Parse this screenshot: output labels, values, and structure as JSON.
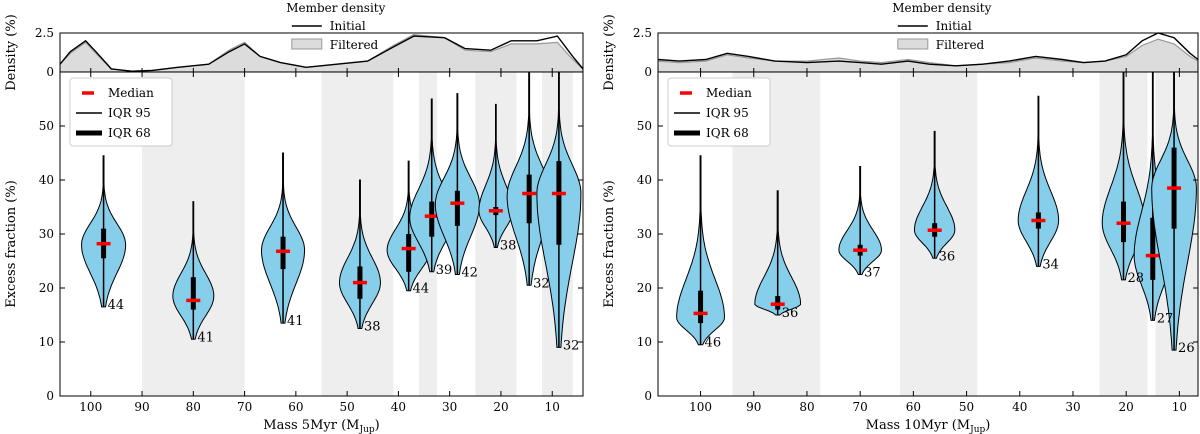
{
  "colors": {
    "violin": "#87ceeb",
    "median": "#ff0000",
    "bin": "#eeeeee",
    "filtered": "#dcdcdc",
    "filtered_line": "#999999"
  },
  "density_legend": {
    "title": "Member density",
    "initial": "Initial",
    "filtered": "Filtered"
  },
  "violin_legend": {
    "median": "Median",
    "iqr95": "IQR 95",
    "iqr68": "IQR 68"
  },
  "chart_data": [
    {
      "type": "violin",
      "xlabel": "Mass 5Myr (M",
      "xlabel_sub": "Jup",
      "xlabel_close": ")",
      "xlim": [
        106,
        4
      ],
      "xticks": [
        100,
        90,
        80,
        70,
        60,
        50,
        40,
        30,
        20,
        10
      ],
      "ylabel": "Excess fraction (%)",
      "ylim": [
        0,
        60
      ],
      "yticks": [
        0,
        10,
        20,
        30,
        40,
        50
      ],
      "density": {
        "ylabel": "Density (%)",
        "ylim": [
          0,
          2.5
        ],
        "yticks": [
          0,
          2.5
        ],
        "initial": [
          [
            106,
            0.5
          ],
          [
            104,
            1.3
          ],
          [
            101,
            2.0
          ],
          [
            99,
            1.3
          ],
          [
            96,
            0.2
          ],
          [
            92,
            0.05
          ],
          [
            88,
            0.1
          ],
          [
            83,
            0.3
          ],
          [
            77,
            0.5
          ],
          [
            73,
            1.3
          ],
          [
            70,
            1.8
          ],
          [
            67,
            1.0
          ],
          [
            63,
            0.6
          ],
          [
            58,
            0.3
          ],
          [
            52,
            0.5
          ],
          [
            46,
            0.7
          ],
          [
            41,
            1.6
          ],
          [
            37,
            2.3
          ],
          [
            31,
            2.2
          ],
          [
            27,
            1.5
          ],
          [
            22,
            1.4
          ],
          [
            18,
            2.0
          ],
          [
            13,
            2.0
          ],
          [
            9,
            2.3
          ],
          [
            6,
            1.0
          ],
          [
            4,
            0.2
          ]
        ],
        "filtered": [
          [
            106,
            0.5
          ],
          [
            104,
            1.2
          ],
          [
            101,
            1.9
          ],
          [
            99,
            1.2
          ],
          [
            96,
            0.2
          ],
          [
            92,
            0.05
          ],
          [
            88,
            0.1
          ],
          [
            83,
            0.3
          ],
          [
            77,
            0.5
          ],
          [
            73,
            1.4
          ],
          [
            70,
            1.9
          ],
          [
            67,
            1.0
          ],
          [
            63,
            0.6
          ],
          [
            58,
            0.3
          ],
          [
            52,
            0.5
          ],
          [
            46,
            0.7
          ],
          [
            41,
            1.7
          ],
          [
            37,
            2.4
          ],
          [
            31,
            2.2
          ],
          [
            27,
            1.4
          ],
          [
            22,
            1.3
          ],
          [
            18,
            1.8
          ],
          [
            13,
            1.8
          ],
          [
            9,
            1.9
          ],
          [
            6,
            0.8
          ],
          [
            4,
            0.2
          ]
        ]
      },
      "bins": [
        [
          90,
          70
        ],
        [
          55,
          41
        ],
        [
          36,
          32.5
        ],
        [
          25,
          17
        ],
        [
          12,
          6
        ]
      ],
      "violins": [
        {
          "x": 97.5,
          "median": 28.2,
          "q1": 25.5,
          "q3": 31.0,
          "p2_5": 16.5,
          "p97_5": 44.5,
          "peak": 28.0,
          "width": 4.3,
          "count": "44"
        },
        {
          "x": 80,
          "median": 17.7,
          "q1": 16.0,
          "q3": 22.0,
          "p2_5": 10.5,
          "p97_5": 36.0,
          "peak": 18.5,
          "width": 4.0,
          "count": "41"
        },
        {
          "x": 62.5,
          "median": 26.8,
          "q1": 23.5,
          "q3": 29.5,
          "p2_5": 13.5,
          "p97_5": 45.0,
          "peak": 27.0,
          "width": 4.2,
          "count": "41"
        },
        {
          "x": 47.5,
          "median": 21.0,
          "q1": 18.0,
          "q3": 24.0,
          "p2_5": 12.5,
          "p97_5": 40.0,
          "peak": 21.0,
          "width": 4.0,
          "count": "38"
        },
        {
          "x": 38,
          "median": 27.3,
          "q1": 23.0,
          "q3": 30.0,
          "p2_5": 19.5,
          "p97_5": 43.5,
          "peak": 27.0,
          "width": 4.2,
          "count": "44"
        },
        {
          "x": 33.5,
          "median": 33.3,
          "q1": 29.5,
          "q3": 36.0,
          "p2_5": 23.0,
          "p97_5": 55.0,
          "peak": 33.0,
          "width": 4.3,
          "count": "39"
        },
        {
          "x": 28.5,
          "median": 35.7,
          "q1": 31.5,
          "q3": 38.0,
          "p2_5": 22.5,
          "p97_5": 56.0,
          "peak": 35.5,
          "width": 4.3,
          "count": "42"
        },
        {
          "x": 21,
          "median": 34.3,
          "q1": 33.5,
          "q3": 35.0,
          "p2_5": 27.5,
          "p97_5": 54.0,
          "peak": 34.3,
          "width": 3.3,
          "count": "38"
        },
        {
          "x": 14.5,
          "median": 37.5,
          "q1": 32.0,
          "q3": 41.0,
          "p2_5": 20.5,
          "p97_5": 60.0,
          "peak": 37.0,
          "width": 4.3,
          "count": "32"
        },
        {
          "x": 8.7,
          "median": 37.5,
          "q1": 28.0,
          "q3": 43.5,
          "p2_5": 9.0,
          "p97_5": 60.0,
          "peak": 37.5,
          "width": 4.3,
          "count": "32"
        }
      ]
    },
    {
      "type": "violin",
      "xlabel": "Mass 10Myr (M",
      "xlabel_sub": "Jup",
      "xlabel_close": ")",
      "xlim": [
        108,
        6.5
      ],
      "xticks": [
        100,
        90,
        80,
        70,
        60,
        50,
        40,
        30,
        20,
        10
      ],
      "ylabel": "Excess fraction (%)",
      "ylim": [
        0,
        60
      ],
      "yticks": [
        0,
        10,
        20,
        30,
        40,
        50
      ],
      "density": {
        "ylabel": "Density (%)",
        "ylim": [
          0,
          2.5
        ],
        "yticks": [
          0,
          2.5
        ],
        "initial": [
          [
            108,
            0.8
          ],
          [
            104,
            0.7
          ],
          [
            99,
            0.8
          ],
          [
            95,
            1.2
          ],
          [
            91,
            1.0
          ],
          [
            86,
            0.7
          ],
          [
            80,
            0.6
          ],
          [
            74,
            0.7
          ],
          [
            70,
            0.6
          ],
          [
            66,
            0.5
          ],
          [
            61,
            0.7
          ],
          [
            57,
            0.5
          ],
          [
            52,
            0.4
          ],
          [
            47,
            0.5
          ],
          [
            42,
            0.7
          ],
          [
            37,
            1.0
          ],
          [
            32,
            0.8
          ],
          [
            28,
            0.6
          ],
          [
            24,
            0.7
          ],
          [
            20,
            1.1
          ],
          [
            17,
            2.0
          ],
          [
            14,
            2.5
          ],
          [
            11,
            2.2
          ],
          [
            8,
            1.2
          ],
          [
            6.5,
            0.8
          ]
        ],
        "filtered": [
          [
            108,
            0.7
          ],
          [
            104,
            0.6
          ],
          [
            99,
            0.7
          ],
          [
            95,
            1.1
          ],
          [
            91,
            0.9
          ],
          [
            86,
            0.7
          ],
          [
            80,
            0.7
          ],
          [
            74,
            0.9
          ],
          [
            70,
            0.7
          ],
          [
            66,
            0.6
          ],
          [
            61,
            0.8
          ],
          [
            57,
            0.6
          ],
          [
            52,
            0.4
          ],
          [
            47,
            0.5
          ],
          [
            42,
            0.6
          ],
          [
            37,
            0.9
          ],
          [
            32,
            0.7
          ],
          [
            28,
            0.6
          ],
          [
            24,
            0.7
          ],
          [
            20,
            1.0
          ],
          [
            17,
            1.7
          ],
          [
            14,
            2.1
          ],
          [
            11,
            1.8
          ],
          [
            8,
            1.0
          ],
          [
            6.5,
            0.7
          ]
        ]
      },
      "bins": [
        [
          94,
          77.5
        ],
        [
          62.5,
          48
        ],
        [
          25,
          16
        ],
        [
          14.5,
          6.5
        ]
      ],
      "violins": [
        {
          "x": 100,
          "median": 15.3,
          "q1": 13.5,
          "q3": 19.5,
          "p2_5": 9.5,
          "p97_5": 44.5,
          "peak": 14.5,
          "width": 4.5,
          "count": "46"
        },
        {
          "x": 85.5,
          "median": 17.0,
          "q1": 16.0,
          "q3": 18.5,
          "p2_5": 15.0,
          "p97_5": 38.0,
          "peak": 17.0,
          "width": 4.3,
          "count": "36"
        },
        {
          "x": 70,
          "median": 27.0,
          "q1": 26.0,
          "q3": 28.0,
          "p2_5": 22.5,
          "p97_5": 42.5,
          "peak": 27.0,
          "width": 4.0,
          "count": "37"
        },
        {
          "x": 56,
          "median": 30.7,
          "q1": 29.5,
          "q3": 32.0,
          "p2_5": 25.5,
          "p97_5": 49.0,
          "peak": 30.7,
          "width": 3.8,
          "count": "36"
        },
        {
          "x": 36.5,
          "median": 32.5,
          "q1": 31.0,
          "q3": 34.0,
          "p2_5": 24.0,
          "p97_5": 55.5,
          "peak": 32.5,
          "width": 3.8,
          "count": "34"
        },
        {
          "x": 20.5,
          "median": 32.0,
          "q1": 28.5,
          "q3": 36.0,
          "p2_5": 21.5,
          "p97_5": 60.0,
          "peak": 32.0,
          "width": 4.0,
          "count": "28"
        },
        {
          "x": 15,
          "median": 26.0,
          "q1": 21.5,
          "q3": 33.0,
          "p2_5": 14.0,
          "p97_5": 60.0,
          "peak": 26.0,
          "width": 3.5,
          "count": "27"
        },
        {
          "x": 11,
          "median": 38.5,
          "q1": 31.0,
          "q3": 46.0,
          "p2_5": 8.5,
          "p97_5": 60.0,
          "peak": 38.5,
          "width": 4.2,
          "count": "26"
        }
      ]
    }
  ]
}
